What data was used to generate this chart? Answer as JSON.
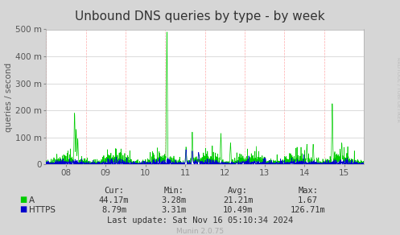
{
  "title": "Unbound DNS queries by type - by week",
  "ylabel": "queries / second",
  "rrdtool_label": "RRDTOOL / TOBI OETIKER",
  "background_color": "#d6d6d6",
  "plot_bg_color": "#ffffff",
  "ylim": [
    0,
    500
  ],
  "yticks": [
    0,
    100,
    200,
    300,
    400,
    500
  ],
  "ytick_labels": [
    "0",
    "100 m",
    "200 m",
    "300 m",
    "400 m",
    "500 m"
  ],
  "xtick_labels": [
    "08",
    "09",
    "10",
    "11",
    "12",
    "13",
    "14",
    "15"
  ],
  "colors": {
    "A": "#00cc00",
    "HTTPS": "#0000cc"
  },
  "stats": {
    "headers": [
      "Cur:",
      "Min:",
      "Avg:",
      "Max:"
    ],
    "A": [
      "44.17m",
      "3.28m",
      "21.21m",
      "1.67"
    ],
    "HTTPS": [
      "8.79m",
      "3.31m",
      "10.49m",
      "126.71m"
    ]
  },
  "last_update": "Last update: Sat Nov 16 05:10:34 2024",
  "munin_version": "Munin 2.0.75",
  "title_fontsize": 11,
  "axis_fontsize": 7.5,
  "stats_fontsize": 7.5
}
